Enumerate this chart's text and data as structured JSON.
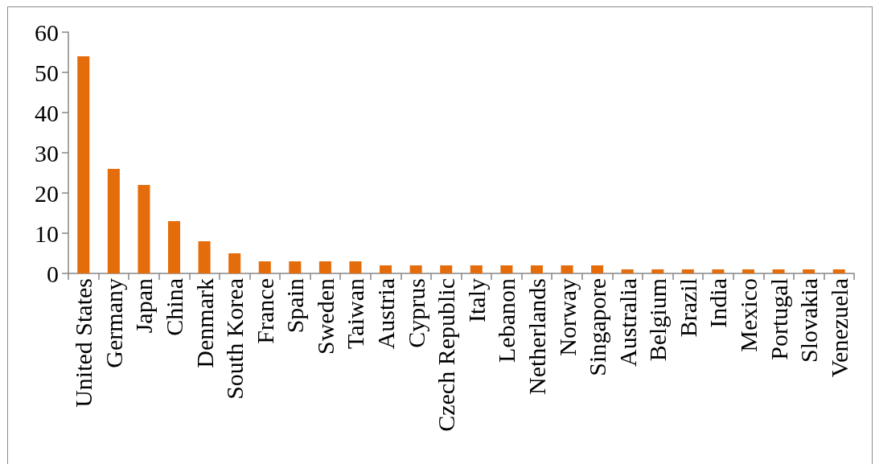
{
  "chart_data": {
    "type": "bar",
    "categories": [
      "United States",
      "Germany",
      "Japan",
      "China",
      "Denmark",
      "South Korea",
      "France",
      "Spain",
      "Sweden",
      "Taiwan",
      "Austria",
      "Cyprus",
      "Czech Republic",
      "Italy",
      "Lebanon",
      "Netherlands",
      "Norway",
      "Singapore",
      "Australia",
      "Belgium",
      "Brazil",
      "India",
      "Mexico",
      "Portugal",
      "Slovakia",
      "Venezuela"
    ],
    "values": [
      54,
      26,
      22,
      13,
      8,
      5,
      3,
      3,
      3,
      3,
      2,
      2,
      2,
      2,
      2,
      2,
      2,
      2,
      1,
      1,
      1,
      1,
      1,
      1,
      1,
      1
    ],
    "color": "#e46c0a",
    "ylim": [
      0,
      60
    ],
    "yticks": [
      0,
      10,
      20,
      30,
      40,
      50,
      60
    ]
  }
}
